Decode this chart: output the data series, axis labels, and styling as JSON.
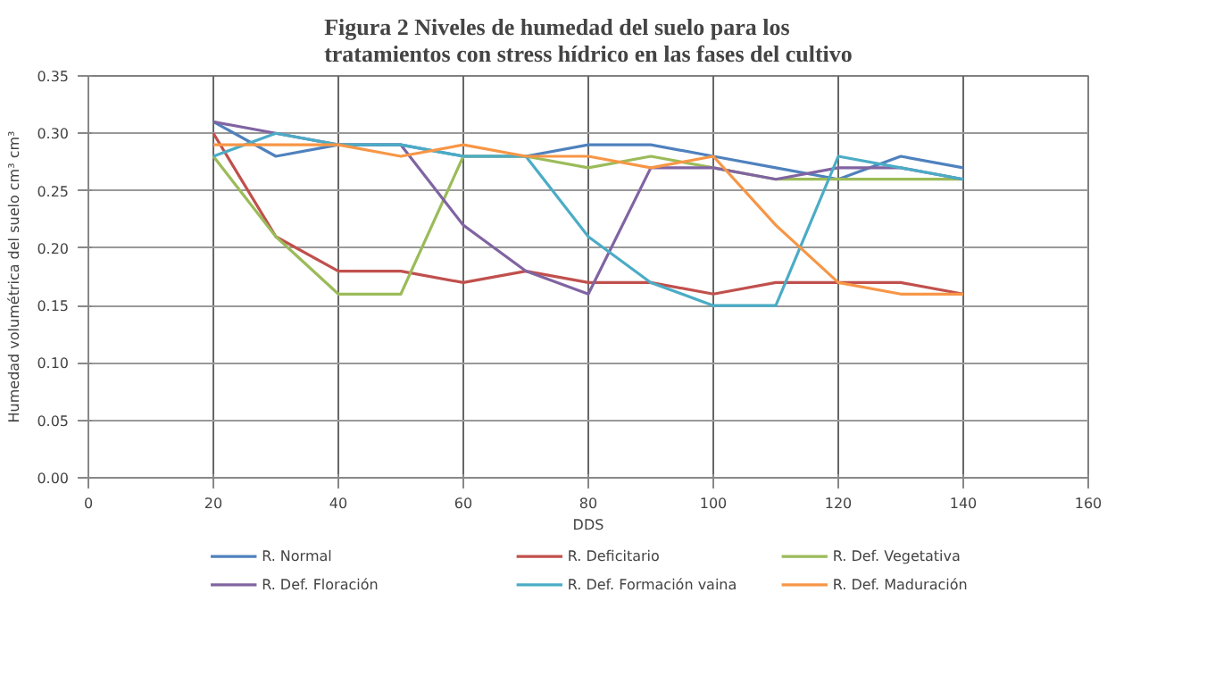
{
  "chart_data": {
    "type": "line",
    "title": "Figura 2 Niveles de humedad del suelo para los\ntratamientos con stress hídrico en las fases del cultivo",
    "xlabel": "DDS",
    "ylabel": "Humedad volumétrica del suelo cm³ cm³",
    "x": [
      20,
      30,
      40,
      50,
      60,
      70,
      80,
      90,
      100,
      110,
      120,
      130,
      140
    ],
    "series": [
      {
        "name": "R. Normal",
        "color": "#4f81bd",
        "values": [
          0.31,
          0.28,
          0.29,
          0.29,
          0.28,
          0.28,
          0.29,
          0.29,
          0.28,
          0.27,
          0.26,
          0.28,
          0.27
        ]
      },
      {
        "name": "R. Deficitario",
        "color": "#c0504d",
        "values": [
          0.3,
          0.21,
          0.18,
          0.18,
          0.17,
          0.18,
          0.17,
          0.17,
          0.16,
          0.17,
          0.17,
          0.17,
          0.16
        ]
      },
      {
        "name": "R. Def. Vegetativa",
        "color": "#9bbb59",
        "values": [
          0.28,
          0.21,
          0.16,
          0.16,
          0.28,
          0.28,
          0.27,
          0.28,
          0.27,
          0.26,
          0.26,
          0.26,
          0.26
        ]
      },
      {
        "name": "R. Def. Floración",
        "color": "#8064a2",
        "values": [
          0.31,
          0.3,
          0.29,
          0.29,
          0.22,
          0.18,
          0.16,
          0.27,
          0.27,
          0.26,
          0.27,
          0.27,
          0.26
        ]
      },
      {
        "name": "R. Def. Formación vaina",
        "color": "#4bacc6",
        "values": [
          0.28,
          0.3,
          0.29,
          0.29,
          0.28,
          0.28,
          0.21,
          0.17,
          0.15,
          0.15,
          0.28,
          0.27,
          0.26
        ]
      },
      {
        "name": "R. Def. Maduración",
        "color": "#f79646",
        "values": [
          0.29,
          0.29,
          0.29,
          0.28,
          0.29,
          0.28,
          0.28,
          0.27,
          0.28,
          0.22,
          0.17,
          0.16,
          0.16
        ]
      }
    ],
    "xlim": [
      0,
      160
    ],
    "xticks": [
      0,
      20,
      40,
      60,
      80,
      100,
      120,
      140,
      160
    ],
    "ylim": [
      0,
      0.35
    ],
    "yticks": [
      {
        "value": 0,
        "label": "0.00"
      },
      {
        "value": 0.05,
        "label": "0.05"
      },
      {
        "value": 0.1,
        "label": "0.10"
      },
      {
        "value": 0.15,
        "label": "0.15"
      },
      {
        "value": 0.2,
        "label": "0.20"
      },
      {
        "value": 0.25,
        "label": "0.25"
      },
      {
        "value": 0.3,
        "label": "0.30"
      },
      {
        "value": 0.35,
        "label": "0.35"
      }
    ],
    "grid": true,
    "legend": "bottom",
    "marker": "none",
    "line_style": "solid"
  }
}
